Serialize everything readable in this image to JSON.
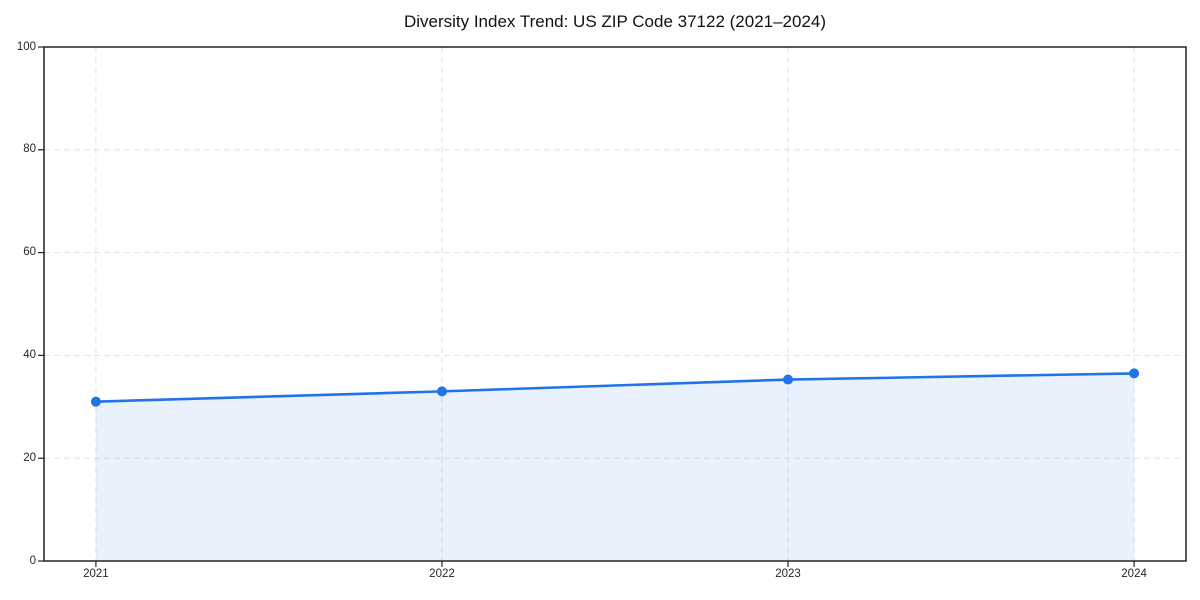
{
  "figure": {
    "background": "#ffffff"
  },
  "chart_data": {
    "type": "line",
    "title": "Diversity Index Trend: US ZIP Code 37122 (2021–2024)",
    "x": [
      2021,
      2022,
      2023,
      2024
    ],
    "series": [
      {
        "name": "Diversity Index",
        "values": [
          31.0,
          33.0,
          35.3,
          36.5
        ]
      }
    ],
    "xlabel": "",
    "ylabel": "",
    "xtick_labels": [
      "2021",
      "2022",
      "2023",
      "2024"
    ],
    "ytick_values": [
      0,
      20,
      40,
      60,
      80,
      100
    ],
    "xlim": [
      2020.85,
      2024.15
    ],
    "ylim": [
      0,
      100
    ],
    "grid": true,
    "grid_style": "dashed",
    "legend": false,
    "marker": "circle",
    "marker_radius": 5,
    "line_width": 2.6,
    "colors": {
      "line": "#2373e8",
      "marker": "#2373e8",
      "area_fill": "rgba(35,115,232,0.10)",
      "grid": "#e1e1e1",
      "spine": "#222222",
      "tick_label": "#262626",
      "title": "#111111"
    }
  }
}
